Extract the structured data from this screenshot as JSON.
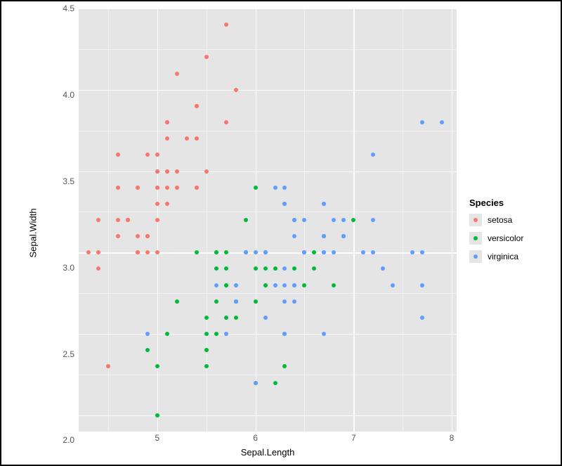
{
  "chart": {
    "type": "scatter",
    "xlabel": "Sepal.Length",
    "ylabel": "Sepal.Width",
    "legend_title": "Species",
    "label_fontsize": 13,
    "tick_fontsize": 12,
    "background_color": "#ffffff",
    "panel_background": "#e5e5e5",
    "grid_major_color": "#ffffff",
    "grid_minor_color": "#f2f2f2",
    "grid_major_width": 1.3,
    "grid_minor_width": 0.6,
    "frame_border_color": "#000000",
    "frame_border_width": 2,
    "xlim": [
      4.2,
      8.05
    ],
    "ylim": [
      1.9,
      4.5
    ],
    "x_major_ticks": [
      5,
      6,
      7,
      8
    ],
    "x_minor_ticks": [
      4.5,
      5.5,
      6.5,
      7.5
    ],
    "y_major_ticks": [
      2.0,
      2.5,
      3.0,
      3.5,
      4.0,
      4.5
    ],
    "y_minor_ticks": [
      2.25,
      2.75,
      3.25,
      3.75,
      4.25
    ],
    "x_tick_labels": [
      "5",
      "6",
      "7",
      "8"
    ],
    "y_tick_labels": [
      "2.0",
      "2.5",
      "3.0",
      "3.5",
      "4.0",
      "4.5"
    ],
    "point_radius": 3,
    "series": [
      {
        "name": "setosa",
        "color": "#f8766d",
        "points": [
          [
            5.1,
            3.5
          ],
          [
            4.9,
            3.0
          ],
          [
            4.7,
            3.2
          ],
          [
            4.6,
            3.1
          ],
          [
            5.0,
            3.6
          ],
          [
            5.4,
            3.9
          ],
          [
            4.6,
            3.4
          ],
          [
            5.0,
            3.4
          ],
          [
            4.4,
            2.9
          ],
          [
            4.9,
            3.1
          ],
          [
            5.4,
            3.7
          ],
          [
            4.8,
            3.4
          ],
          [
            4.8,
            3.0
          ],
          [
            4.3,
            3.0
          ],
          [
            5.8,
            4.0
          ],
          [
            5.7,
            4.4
          ],
          [
            5.4,
            3.9
          ],
          [
            5.1,
            3.5
          ],
          [
            5.7,
            3.8
          ],
          [
            5.1,
            3.8
          ],
          [
            5.4,
            3.4
          ],
          [
            5.1,
            3.7
          ],
          [
            4.6,
            3.6
          ],
          [
            5.1,
            3.3
          ],
          [
            4.8,
            3.4
          ],
          [
            5.0,
            3.0
          ],
          [
            5.0,
            3.4
          ],
          [
            5.2,
            3.5
          ],
          [
            5.2,
            3.4
          ],
          [
            4.7,
            3.2
          ],
          [
            4.8,
            3.1
          ],
          [
            5.4,
            3.4
          ],
          [
            5.2,
            4.1
          ],
          [
            5.5,
            4.2
          ],
          [
            4.9,
            3.1
          ],
          [
            5.0,
            3.2
          ],
          [
            5.5,
            3.5
          ],
          [
            4.9,
            3.6
          ],
          [
            4.4,
            3.0
          ],
          [
            5.1,
            3.4
          ],
          [
            5.0,
            3.5
          ],
          [
            4.5,
            2.3
          ],
          [
            4.4,
            3.2
          ],
          [
            5.0,
            3.5
          ],
          [
            5.1,
            3.8
          ],
          [
            4.8,
            3.0
          ],
          [
            5.1,
            3.8
          ],
          [
            4.6,
            3.2
          ],
          [
            5.3,
            3.7
          ],
          [
            5.0,
            3.3
          ]
        ]
      },
      {
        "name": "versicolor",
        "color": "#00ba38",
        "points": [
          [
            7.0,
            3.2
          ],
          [
            6.4,
            3.2
          ],
          [
            6.9,
            3.1
          ],
          [
            5.5,
            2.3
          ],
          [
            6.5,
            2.8
          ],
          [
            5.7,
            2.8
          ],
          [
            6.3,
            3.3
          ],
          [
            4.9,
            2.4
          ],
          [
            6.6,
            2.9
          ],
          [
            5.2,
            2.7
          ],
          [
            5.0,
            2.0
          ],
          [
            5.9,
            3.0
          ],
          [
            6.0,
            2.2
          ],
          [
            6.1,
            2.9
          ],
          [
            5.6,
            2.9
          ],
          [
            6.7,
            3.1
          ],
          [
            5.6,
            3.0
          ],
          [
            5.8,
            2.7
          ],
          [
            6.2,
            2.2
          ],
          [
            5.6,
            2.5
          ],
          [
            5.9,
            3.2
          ],
          [
            6.1,
            2.8
          ],
          [
            6.3,
            2.5
          ],
          [
            6.1,
            2.8
          ],
          [
            6.4,
            2.9
          ],
          [
            6.6,
            3.0
          ],
          [
            6.8,
            2.8
          ],
          [
            6.7,
            3.0
          ],
          [
            6.0,
            2.9
          ],
          [
            5.7,
            2.6
          ],
          [
            5.5,
            2.4
          ],
          [
            5.5,
            2.4
          ],
          [
            5.8,
            2.7
          ],
          [
            6.0,
            2.7
          ],
          [
            5.4,
            3.0
          ],
          [
            6.0,
            3.4
          ],
          [
            6.7,
            3.1
          ],
          [
            6.3,
            2.3
          ],
          [
            5.6,
            3.0
          ],
          [
            5.5,
            2.5
          ],
          [
            5.5,
            2.6
          ],
          [
            6.1,
            3.0
          ],
          [
            5.8,
            2.6
          ],
          [
            5.0,
            2.3
          ],
          [
            5.6,
            2.7
          ],
          [
            5.7,
            3.0
          ],
          [
            5.7,
            2.9
          ],
          [
            6.2,
            2.9
          ],
          [
            5.1,
            2.5
          ],
          [
            5.7,
            2.8
          ]
        ]
      },
      {
        "name": "virginica",
        "color": "#619cff",
        "points": [
          [
            6.3,
            3.3
          ],
          [
            5.8,
            2.7
          ],
          [
            7.1,
            3.0
          ],
          [
            6.3,
            2.9
          ],
          [
            6.5,
            3.0
          ],
          [
            7.6,
            3.0
          ],
          [
            4.9,
            2.5
          ],
          [
            7.3,
            2.9
          ],
          [
            6.7,
            2.5
          ],
          [
            7.2,
            3.6
          ],
          [
            6.5,
            3.2
          ],
          [
            6.4,
            2.7
          ],
          [
            6.8,
            3.0
          ],
          [
            5.7,
            2.5
          ],
          [
            5.8,
            2.8
          ],
          [
            6.4,
            3.2
          ],
          [
            6.5,
            3.0
          ],
          [
            7.7,
            3.8
          ],
          [
            7.7,
            2.6
          ],
          [
            6.0,
            2.2
          ],
          [
            6.9,
            3.2
          ],
          [
            5.6,
            2.8
          ],
          [
            7.7,
            2.8
          ],
          [
            6.3,
            2.7
          ],
          [
            6.7,
            3.3
          ],
          [
            7.2,
            3.2
          ],
          [
            6.2,
            2.8
          ],
          [
            6.1,
            3.0
          ],
          [
            6.4,
            2.8
          ],
          [
            7.2,
            3.0
          ],
          [
            7.4,
            2.8
          ],
          [
            7.9,
            3.8
          ],
          [
            6.4,
            2.8
          ],
          [
            6.3,
            2.8
          ],
          [
            6.1,
            2.6
          ],
          [
            7.7,
            3.0
          ],
          [
            6.3,
            3.4
          ],
          [
            6.4,
            3.1
          ],
          [
            6.0,
            3.0
          ],
          [
            6.9,
            3.1
          ],
          [
            6.7,
            3.1
          ],
          [
            6.9,
            3.1
          ],
          [
            5.8,
            2.7
          ],
          [
            6.8,
            3.2
          ],
          [
            6.7,
            3.3
          ],
          [
            6.7,
            3.0
          ],
          [
            6.3,
            2.5
          ],
          [
            6.5,
            3.0
          ],
          [
            6.2,
            3.4
          ],
          [
            5.9,
            3.0
          ]
        ]
      }
    ]
  }
}
